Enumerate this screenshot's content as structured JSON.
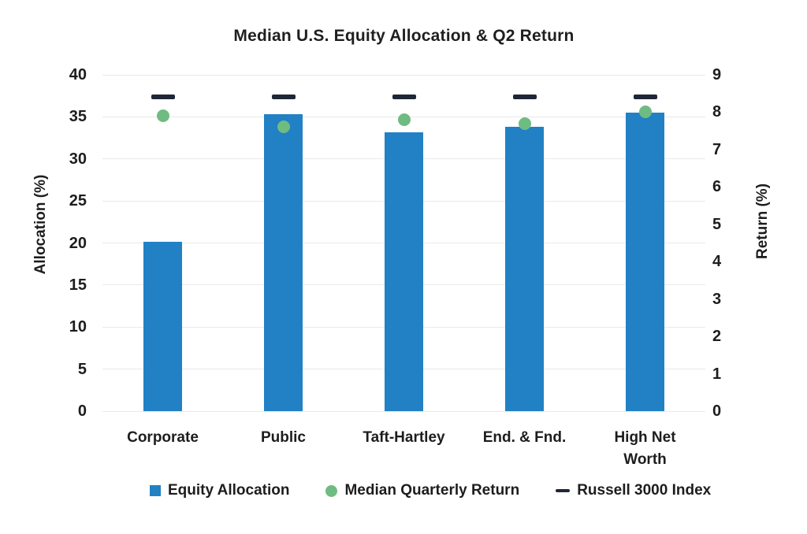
{
  "chart_data": {
    "type": "bar",
    "title": "Median U.S. Equity Allocation & Q2 Return",
    "categories": [
      "Corporate",
      "Public",
      "Taft-Hartley",
      "End. & Fnd.",
      "High Net Worth"
    ],
    "series": [
      {
        "name": "Equity Allocation",
        "type": "bar",
        "axis": "left",
        "color": "#2181c4",
        "values": [
          20.1,
          35.3,
          33.2,
          33.8,
          35.5
        ]
      },
      {
        "name": "Median Quarterly Return",
        "type": "dot",
        "axis": "right",
        "color": "#6fbc82",
        "values": [
          7.9,
          7.6,
          7.8,
          7.7,
          8.0
        ]
      },
      {
        "name": "Russell 3000 Index",
        "type": "dash",
        "axis": "right",
        "color": "#1e2738",
        "values": [
          8.4,
          8.4,
          8.4,
          8.4,
          8.4
        ]
      }
    ],
    "left_axis": {
      "label": "Allocation (%)",
      "min": 0,
      "max": 40,
      "step": 5,
      "ticks": [
        0,
        5,
        10,
        15,
        20,
        25,
        30,
        35,
        40
      ]
    },
    "right_axis": {
      "label": "Return (%)",
      "min": 0,
      "max": 9,
      "step": 1,
      "ticks": [
        0,
        1,
        2,
        3,
        4,
        5,
        6,
        7,
        8,
        9
      ]
    },
    "grid": true,
    "legend_position": "bottom",
    "colors": {
      "grid": "#e9e9e9",
      "text": "#1d1d1d",
      "background": "#ffffff"
    }
  }
}
